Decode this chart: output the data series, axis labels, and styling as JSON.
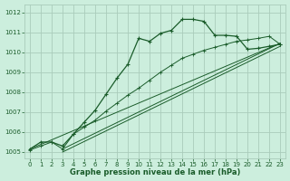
{
  "xlabel": "Graphe pression niveau de la mer (hPa)",
  "bg_color": "#cceedd",
  "grid_color": "#aaccbb",
  "line_color": "#1a5c2a",
  "xlim": [
    -0.5,
    23.5
  ],
  "ylim": [
    1004.7,
    1012.4
  ],
  "xticks": [
    0,
    1,
    2,
    3,
    4,
    5,
    6,
    7,
    8,
    9,
    10,
    11,
    12,
    13,
    14,
    15,
    16,
    17,
    18,
    19,
    20,
    21,
    22,
    23
  ],
  "yticks": [
    1005,
    1006,
    1007,
    1008,
    1009,
    1010,
    1011,
    1012
  ],
  "curve_main_x": [
    0,
    1,
    2,
    3,
    4,
    5,
    6,
    7,
    8,
    9,
    10,
    11,
    12,
    13,
    14,
    15,
    16,
    17,
    18,
    19,
    20,
    21,
    22,
    23
  ],
  "curve_main_y": [
    1005.15,
    1005.5,
    1005.5,
    1005.3,
    1005.9,
    1006.5,
    1007.1,
    1007.9,
    1008.7,
    1009.4,
    1010.7,
    1010.55,
    1010.95,
    1011.1,
    1011.65,
    1011.65,
    1011.55,
    1010.85,
    1010.85,
    1010.8,
    1010.15,
    1010.2,
    1010.3,
    1010.4
  ],
  "line1_x": [
    0,
    23
  ],
  "line1_y": [
    1005.15,
    1010.45
  ],
  "line2_x": [
    3,
    23
  ],
  "line2_y": [
    1005.15,
    1010.45
  ],
  "line3_x": [
    3,
    23
  ],
  "line3_y": [
    1005.0,
    1010.3
  ],
  "straight_with_markers_x": [
    0,
    1,
    2,
    3,
    4,
    5,
    6,
    7,
    8,
    9,
    10,
    11,
    12,
    13,
    14,
    15,
    16,
    17,
    18,
    19,
    20,
    21,
    22,
    23
  ],
  "straight_with_markers_y": [
    1005.1,
    1005.3,
    1005.5,
    1005.15,
    1005.9,
    1006.25,
    1006.6,
    1007.05,
    1007.45,
    1007.85,
    1008.2,
    1008.6,
    1009.0,
    1009.35,
    1009.7,
    1009.9,
    1010.1,
    1010.25,
    1010.4,
    1010.55,
    1010.62,
    1010.7,
    1010.8,
    1010.4
  ]
}
